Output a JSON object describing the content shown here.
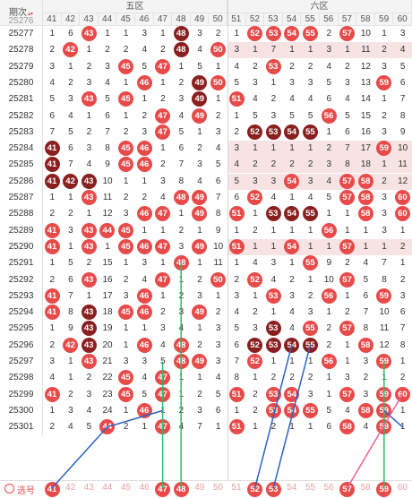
{
  "header": {
    "period_label": "期次",
    "sort_icon": "sort-icon",
    "zones": [
      "五区",
      "六区"
    ],
    "columns": [
      "41",
      "42",
      "43",
      "44",
      "45",
      "46",
      "47",
      "48",
      "49",
      "50",
      "51",
      "52",
      "53",
      "54",
      "55",
      "56",
      "57",
      "58",
      "59",
      "60"
    ]
  },
  "colors": {
    "ball": "#e84a4a",
    "ball_dark": "#8a1f1f",
    "band": "#f7e3e3",
    "line_green": "#2ebd6b",
    "line_blue": "#2c62c4",
    "line_pink": "#f06292"
  },
  "rows": [
    {
      "period": "25277",
      "cells": [
        "1",
        "6",
        "@43",
        "1",
        "1",
        "3",
        "1",
        "#48",
        "3",
        "2",
        "1",
        "@52",
        "@53",
        "@54",
        "@55",
        "2",
        "@57",
        "10",
        "1",
        "3"
      ]
    },
    {
      "period": "25278",
      "cells": [
        "2",
        "@42",
        "1",
        "2",
        "2",
        "4",
        "2",
        "#48",
        "4",
        "@50",
        "3",
        "1",
        "7",
        "1",
        "1",
        "3",
        "1",
        "11",
        "2",
        "4"
      ]
    },
    {
      "period": "25279",
      "cells": [
        "3",
        "1",
        "2",
        "3",
        "@45",
        "5",
        "@47",
        "1",
        "5",
        "1",
        "4",
        "2",
        "@53",
        "2",
        "2",
        "4",
        "2",
        "12",
        "3",
        "5"
      ]
    },
    {
      "period": "25280",
      "cells": [
        "4",
        "2",
        "3",
        "4",
        "1",
        "@46",
        "1",
        "2",
        "#49",
        "@50",
        "5",
        "3",
        "1",
        "3",
        "3",
        "5",
        "3",
        "13",
        "@59",
        "6"
      ]
    },
    {
      "period": "25281",
      "cells": [
        "5",
        "3",
        "@43",
        "5",
        "@45",
        "1",
        "2",
        "3",
        "#49",
        "1",
        "@51",
        "4",
        "2",
        "4",
        "4",
        "6",
        "4",
        "14",
        "1",
        "7"
      ]
    },
    {
      "period": "25282",
      "cells": [
        "6",
        "4",
        "1",
        "6",
        "1",
        "2",
        "@47",
        "4",
        "@49",
        "2",
        "1",
        "5",
        "3",
        "5",
        "5",
        "@56",
        "5",
        "15",
        "2",
        "8"
      ]
    },
    {
      "period": "25283",
      "cells": [
        "7",
        "5",
        "2",
        "7",
        "2",
        "3",
        "@47",
        "5",
        "1",
        "3",
        "2",
        "#52",
        "#53",
        "#54",
        "#55",
        "1",
        "6",
        "16",
        "3",
        "9"
      ]
    },
    {
      "period": "25284",
      "cells": [
        "#41",
        "6",
        "3",
        "8",
        "@45",
        "@46",
        "1",
        "6",
        "2",
        "4",
        "3",
        "1",
        "1",
        "1",
        "1",
        "2",
        "7",
        "17",
        "@59",
        "10"
      ]
    },
    {
      "period": "25285",
      "cells": [
        "#41",
        "7",
        "4",
        "9",
        "@45",
        "@46",
        "2",
        "7",
        "3",
        "5",
        "4",
        "2",
        "2",
        "2",
        "2",
        "3",
        "8",
        "18",
        "1",
        "11"
      ]
    },
    {
      "period": "25286",
      "cells": [
        "#41",
        "#42",
        "#43",
        "10",
        "1",
        "1",
        "3",
        "8",
        "4",
        "6",
        "5",
        "3",
        "3",
        "@54",
        "3",
        "4",
        "@57",
        "@58",
        "2",
        "12"
      ]
    },
    {
      "period": "25287",
      "cells": [
        "1",
        "1",
        "@43",
        "11",
        "2",
        "2",
        "4",
        "@48",
        "@49",
        "7",
        "6",
        "@52",
        "4",
        "1",
        "4",
        "5",
        "@57",
        "@58",
        "3",
        "@60"
      ]
    },
    {
      "period": "25288",
      "cells": [
        "2",
        "2",
        "1",
        "12",
        "3",
        "@46",
        "@47",
        "1",
        "@49",
        "8",
        "@51",
        "1",
        "#53",
        "#54",
        "#55",
        "1",
        "1",
        "@58",
        "3",
        "@60"
      ]
    },
    {
      "period": "25289",
      "cells": [
        "@41",
        "3",
        "@43",
        "@44",
        "@45",
        "1",
        "1",
        "2",
        "1",
        "9",
        "1",
        "2",
        "1",
        "1",
        "1",
        "@56",
        "1",
        "1",
        "3",
        "1"
      ]
    },
    {
      "period": "25290",
      "cells": [
        "@41",
        "1",
        "@43",
        "1",
        "@45",
        "@46",
        "@47",
        "3",
        "@49",
        "10",
        "@51",
        "1",
        "1",
        "@54",
        "1",
        "1",
        "@57",
        "1",
        "1",
        "2"
      ]
    },
    {
      "period": "25291",
      "cells": [
        "1",
        "5",
        "2",
        "15",
        "1",
        "3",
        "1",
        "@48",
        "1",
        "11",
        "1",
        "4",
        "3",
        "1",
        "@55",
        "9",
        "2",
        "4",
        "7",
        "1"
      ]
    },
    {
      "period": "25292",
      "cells": [
        "2",
        "6",
        "@43",
        "16",
        "2",
        "4",
        "@47",
        "1",
        "2",
        "@50",
        "2",
        "@52",
        "4",
        "2",
        "1",
        "10",
        "@57",
        "5",
        "8",
        "2"
      ]
    },
    {
      "period": "25293",
      "cells": [
        "@41",
        "7",
        "1",
        "17",
        "3",
        "@46",
        "1",
        "2",
        "3",
        "1",
        "3",
        "1",
        "@53",
        "3",
        "2",
        "@56",
        "1",
        "6",
        "@59",
        "3"
      ]
    },
    {
      "period": "25294",
      "cells": [
        "@41",
        "8",
        "#43",
        "18",
        "@45",
        "@46",
        "2",
        "3",
        "@49",
        "2",
        "4",
        "2",
        "1",
        "4",
        "3",
        "1",
        "2",
        "7",
        "10",
        "6"
      ]
    },
    {
      "period": "25295",
      "cells": [
        "1",
        "9",
        "#43",
        "19",
        "1",
        "1",
        "3",
        "4",
        "1",
        "3",
        "5",
        "3",
        "#53",
        "4",
        "@55",
        "2",
        "@57",
        "8",
        "11",
        "7"
      ]
    },
    {
      "period": "25296",
      "cells": [
        "2",
        "@42",
        "#43",
        "20",
        "1",
        "@46",
        "4",
        "@48",
        "2",
        "3",
        "6",
        "#52",
        "#53",
        "#54",
        "#55",
        "2",
        "1",
        "@58",
        "12",
        "8"
      ]
    },
    {
      "period": "25297",
      "cells": [
        "3",
        "1",
        "@43",
        "21",
        "3",
        "3",
        "5",
        "@48",
        "@49",
        "3",
        "7",
        "@52",
        "1",
        "1",
        "1",
        "@56",
        "1",
        "3",
        "@59",
        "1"
      ]
    },
    {
      "period": "25298",
      "cells": [
        "4",
        "1",
        "2",
        "22",
        "@45",
        "4",
        "@47",
        "1",
        "1",
        "4",
        "8",
        "1",
        "2",
        "2",
        "2",
        "1",
        "3",
        "2",
        "1",
        "2"
      ]
    },
    {
      "period": "25299",
      "cells": [
        "@41",
        "2",
        "3",
        "23",
        "@45",
        "5",
        "@47",
        "1",
        "2",
        "5",
        "@51",
        "2",
        "@53",
        "@54",
        "3",
        "1",
        "@57",
        "3",
        "@59",
        "@60"
      ]
    },
    {
      "period": "25300",
      "cells": [
        "1",
        "3",
        "4",
        "24",
        "1",
        "@46",
        "1",
        "2",
        "3",
        "6",
        "1",
        "2",
        "@53",
        "@54",
        "@55",
        "5",
        "4",
        "@58",
        "@59",
        "1"
      ]
    },
    {
      "period": "25301",
      "cells": [
        "2",
        "4",
        "5",
        "@44",
        "2",
        "1",
        "@47",
        "4",
        "7",
        "1",
        "@51",
        "1",
        "2",
        "1",
        "1",
        "6",
        "@58",
        "4",
        "@59",
        "1"
      ]
    }
  ],
  "footer": {
    "label": "选号",
    "numbers": [
      "41",
      "42",
      "43",
      "44",
      "45",
      "46",
      "47",
      "48",
      "49",
      "50",
      "51",
      "52",
      "53",
      "54",
      "55",
      "56",
      "57",
      "58",
      "59",
      "60"
    ],
    "highlighted": [
      "41",
      "47",
      "48",
      "52",
      "53",
      "57",
      "59"
    ]
  }
}
